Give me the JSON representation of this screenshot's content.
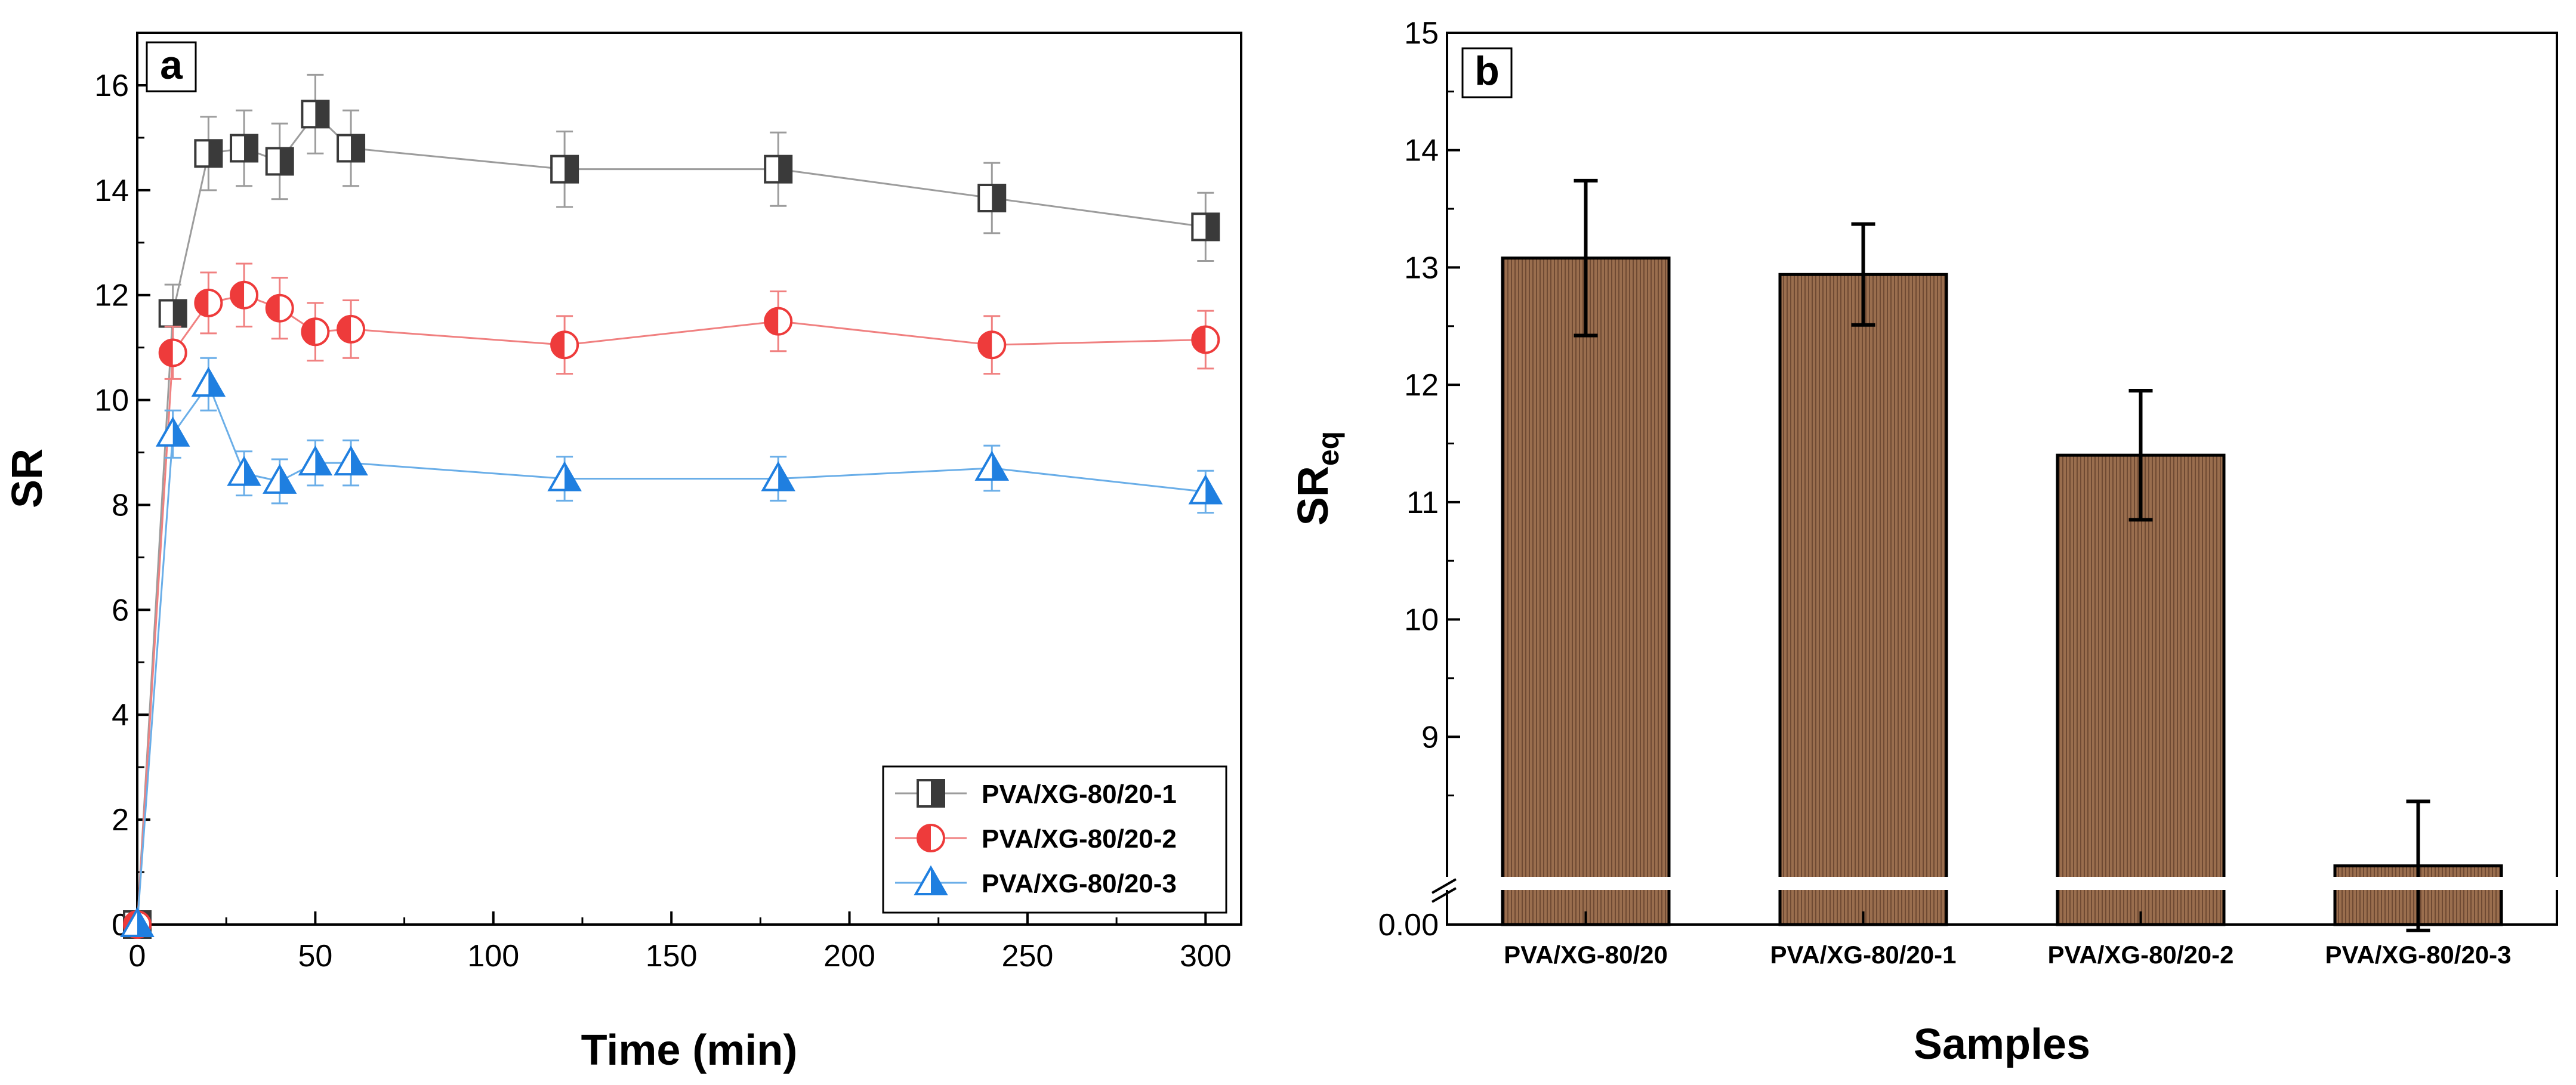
{
  "chart_data": [
    {
      "panel_label": "a",
      "type": "line",
      "xlabel": "Time (min)",
      "ylabel": "SR",
      "xlim": [
        0,
        310
      ],
      "ylim": [
        0,
        17
      ],
      "xticks": [
        "0",
        "50",
        "100",
        "150",
        "200",
        "250",
        "300"
      ],
      "yticks": [
        "0",
        "2",
        "4",
        "6",
        "8",
        "10",
        "12",
        "14",
        "16"
      ],
      "series": [
        {
          "name": "PVA/XG-80/20-1",
          "marker": "square-half",
          "color": "#9c9c9c",
          "marker_color": "#3a3a3a",
          "points": [
            {
              "x": 0,
              "y": 0,
              "err": 0
            },
            {
              "x": 10,
              "y": 11.65,
              "err": 0.55
            },
            {
              "x": 20,
              "y": 14.7,
              "err": 0.7
            },
            {
              "x": 30,
              "y": 14.8,
              "err": 0.72
            },
            {
              "x": 40,
              "y": 14.55,
              "err": 0.72
            },
            {
              "x": 50,
              "y": 15.45,
              "err": 0.75
            },
            {
              "x": 60,
              "y": 14.8,
              "err": 0.72
            },
            {
              "x": 120,
              "y": 14.4,
              "err": 0.72
            },
            {
              "x": 180,
              "y": 14.4,
              "err": 0.7
            },
            {
              "x": 240,
              "y": 13.85,
              "err": 0.67
            },
            {
              "x": 300,
              "y": 13.3,
              "err": 0.65
            }
          ]
        },
        {
          "name": "PVA/XG-80/20-2",
          "marker": "circle-half",
          "color": "#f08080",
          "marker_color": "#ee3b3b",
          "points": [
            {
              "x": 0,
              "y": 0,
              "err": 0
            },
            {
              "x": 10,
              "y": 10.9,
              "err": 0.5
            },
            {
              "x": 20,
              "y": 11.85,
              "err": 0.58
            },
            {
              "x": 30,
              "y": 12.0,
              "err": 0.6
            },
            {
              "x": 40,
              "y": 11.75,
              "err": 0.58
            },
            {
              "x": 50,
              "y": 11.3,
              "err": 0.55
            },
            {
              "x": 60,
              "y": 11.35,
              "err": 0.55
            },
            {
              "x": 120,
              "y": 11.05,
              "err": 0.55
            },
            {
              "x": 180,
              "y": 11.5,
              "err": 0.57
            },
            {
              "x": 240,
              "y": 11.05,
              "err": 0.55
            },
            {
              "x": 300,
              "y": 11.15,
              "err": 0.55
            }
          ]
        },
        {
          "name": "PVA/XG-80/20-3",
          "marker": "triangle-half",
          "color": "#6aaee8",
          "marker_color": "#1f7fe0",
          "points": [
            {
              "x": 0,
              "y": 0,
              "err": 0
            },
            {
              "x": 10,
              "y": 9.35,
              "err": 0.45
            },
            {
              "x": 20,
              "y": 10.3,
              "err": 0.5
            },
            {
              "x": 30,
              "y": 8.6,
              "err": 0.42
            },
            {
              "x": 40,
              "y": 8.45,
              "err": 0.42
            },
            {
              "x": 50,
              "y": 8.8,
              "err": 0.43
            },
            {
              "x": 60,
              "y": 8.8,
              "err": 0.43
            },
            {
              "x": 120,
              "y": 8.5,
              "err": 0.42
            },
            {
              "x": 180,
              "y": 8.5,
              "err": 0.42
            },
            {
              "x": 240,
              "y": 8.7,
              "err": 0.43
            },
            {
              "x": 300,
              "y": 8.25,
              "err": 0.4
            }
          ]
        }
      ],
      "legend_position": "bottom-right"
    },
    {
      "panel_label": "b",
      "type": "bar",
      "xlabel": "Samples",
      "ylabel": "SR",
      "ylabel_subscript": "eq",
      "ylim": [
        7.4,
        15
      ],
      "axis_break": true,
      "yticks": [
        "0.00",
        "9",
        "10",
        "11",
        "12",
        "13",
        "14",
        "15"
      ],
      "categories": [
        "PVA/XG-80/20",
        "PVA/XG-80/20-1",
        "PVA/XG-80/20-2",
        "PVA/XG-80/20-3"
      ],
      "values": [
        13.08,
        12.94,
        11.4,
        7.9
      ],
      "errors": [
        0.66,
        0.43,
        0.55,
        0.55
      ],
      "bar_color": "#9a6e4e"
    }
  ]
}
